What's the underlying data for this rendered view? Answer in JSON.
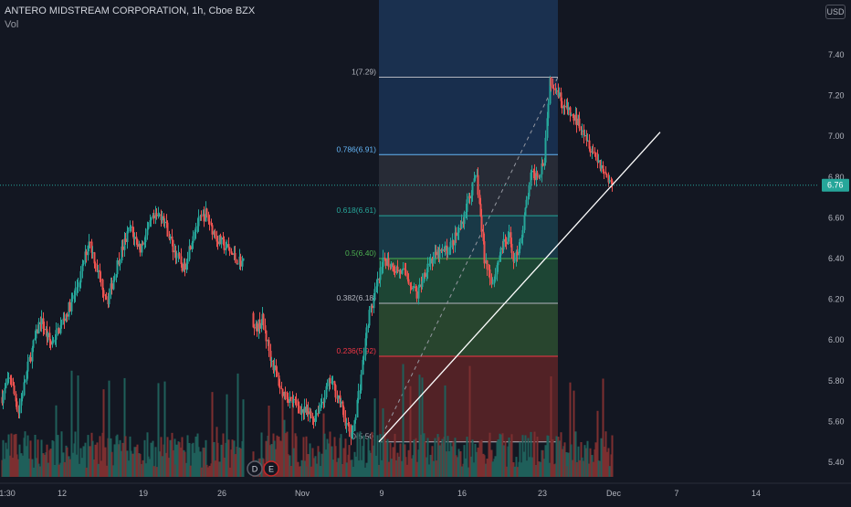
{
  "header": {
    "symbol": "ANTERO MIDSTREAM CORPORATION, 1h, Cboe BZX",
    "indicator": "Vol"
  },
  "currency": "USD",
  "last_price_label": "6.76",
  "colors": {
    "background": "#131722",
    "up": "#26a69a",
    "down": "#ef5350",
    "vol_up": "#1f5f5a",
    "vol_down": "#7c2f30",
    "trendline": "#ffffff",
    "crosshair": "#26a69a",
    "price_tag": "#26a69a"
  },
  "event_markers": [
    {
      "letter": "D",
      "label": "dividends-marker"
    },
    {
      "letter": "E",
      "label": "earnings-marker"
    }
  ],
  "chart_data": {
    "type": "candlestick",
    "title": "ANTERO MIDSTREAM CORPORATION, 1h, Cboe BZX",
    "y_ticks": [
      "7.40",
      "7.20",
      "7.00",
      "6.80",
      "6.60",
      "6.40",
      "6.20",
      "6.00",
      "5.80",
      "5.60",
      "5.40"
    ],
    "y_tick_values": [
      7.4,
      7.2,
      7.0,
      6.8,
      6.6,
      6.4,
      6.2,
      6.0,
      5.8,
      5.6,
      5.4
    ],
    "x_ticks": [
      "1:30",
      "12",
      "19",
      "26",
      "Nov",
      "9",
      "16",
      "23",
      "Dec",
      "7",
      "14"
    ],
    "ylim": [
      5.31,
      7.61
    ],
    "last_price": 6.76,
    "fibonacci": {
      "from": 5.5,
      "to": 7.29,
      "levels": [
        {
          "label": "0(5.50)",
          "ratio": 0,
          "price": 5.5,
          "color": "#b2b5be",
          "fill": null
        },
        {
          "label": "0.236(5.92)",
          "ratio": 0.236,
          "price": 5.92,
          "color": "#f23645",
          "fill": "#5a2427"
        },
        {
          "label": "0.382(6.18)",
          "ratio": 0.382,
          "price": 6.18,
          "color": "#b2b5be",
          "fill": "#2b4a30"
        },
        {
          "label": "0.5(6.40)",
          "ratio": 0.5,
          "price": 6.4,
          "color": "#4caf50",
          "fill": "#1f4a36"
        },
        {
          "label": "0.618(6.61)",
          "ratio": 0.618,
          "price": 6.61,
          "color": "#26a69a",
          "fill": "#1b3d4b"
        },
        {
          "label": "0.786(6.91)",
          "ratio": 0.786,
          "price": 6.91,
          "color": "#64b5f6",
          "fill": "#2a2e39"
        },
        {
          "label": "1(7.29)",
          "ratio": 1,
          "price": 7.29,
          "color": "#b2b5be",
          "fill": "#1a3152"
        }
      ]
    },
    "trendline": {
      "from_price": 5.5,
      "to_price": 7.02
    },
    "series": [
      {
        "name": "price",
        "anchors": [
          [
            0,
            5.72
          ],
          [
            6,
            5.82
          ],
          [
            12,
            5.65
          ],
          [
            20,
            5.9
          ],
          [
            28,
            6.1
          ],
          [
            36,
            5.98
          ],
          [
            44,
            6.08
          ],
          [
            52,
            6.2
          ],
          [
            58,
            6.32
          ],
          [
            64,
            6.5
          ],
          [
            72,
            6.3
          ],
          [
            78,
            6.2
          ],
          [
            86,
            6.4
          ],
          [
            94,
            6.55
          ],
          [
            102,
            6.45
          ],
          [
            110,
            6.58
          ],
          [
            118,
            6.62
          ],
          [
            126,
            6.45
          ],
          [
            134,
            6.35
          ],
          [
            142,
            6.55
          ],
          [
            150,
            6.62
          ],
          [
            158,
            6.5
          ],
          [
            166,
            6.45
          ],
          [
            172,
            6.4
          ],
          [
            178,
            6.38
          ],
          [
            186,
            6.05
          ],
          [
            192,
            6.1
          ],
          [
            198,
            5.92
          ],
          [
            206,
            5.75
          ],
          [
            214,
            5.7
          ],
          [
            222,
            5.65
          ],
          [
            230,
            5.62
          ],
          [
            236,
            5.7
          ],
          [
            242,
            5.8
          ],
          [
            248,
            5.72
          ],
          [
            254,
            5.58
          ],
          [
            258,
            5.52
          ],
          [
            264,
            5.78
          ],
          [
            270,
            6.1
          ],
          [
            276,
            6.25
          ],
          [
            282,
            6.4
          ],
          [
            290,
            6.35
          ],
          [
            298,
            6.32
          ],
          [
            306,
            6.22
          ],
          [
            314,
            6.38
          ],
          [
            322,
            6.42
          ],
          [
            330,
            6.45
          ],
          [
            338,
            6.55
          ],
          [
            344,
            6.7
          ],
          [
            350,
            6.8
          ],
          [
            356,
            6.4
          ],
          [
            362,
            6.28
          ],
          [
            368,
            6.45
          ],
          [
            374,
            6.5
          ],
          [
            378,
            6.38
          ],
          [
            384,
            6.55
          ],
          [
            390,
            6.8
          ],
          [
            396,
            6.82
          ],
          [
            400,
            6.9
          ],
          [
            404,
            7.28
          ],
          [
            408,
            7.25
          ],
          [
            414,
            7.15
          ],
          [
            420,
            7.1
          ],
          [
            428,
            7.05
          ],
          [
            434,
            6.95
          ],
          [
            440,
            6.88
          ],
          [
            446,
            6.8
          ],
          [
            450,
            6.76
          ]
        ]
      }
    ]
  }
}
